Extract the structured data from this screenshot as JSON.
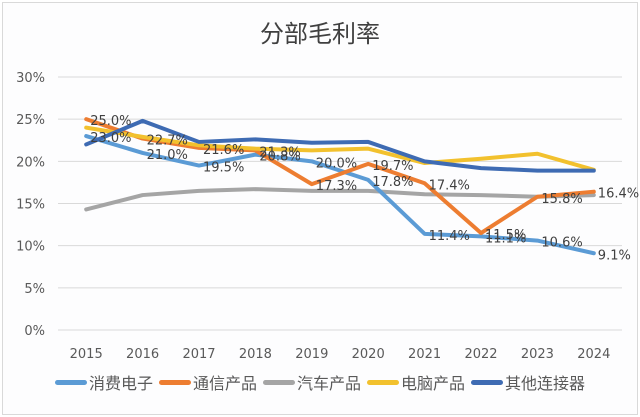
{
  "chart_data": {
    "type": "line",
    "title": "分部毛利率",
    "xlabel": "",
    "ylabel": "",
    "categories": [
      "2015",
      "2016",
      "2017",
      "2018",
      "2019",
      "2020",
      "2021",
      "2022",
      "2023",
      "2024"
    ],
    "ylim": [
      0,
      30
    ],
    "yticks": [
      "0%",
      "5%",
      "10%",
      "15%",
      "20%",
      "25%",
      "30%"
    ],
    "ytick_values": [
      0,
      5,
      10,
      15,
      20,
      25,
      30
    ],
    "grid": true,
    "legend_position": "bottom",
    "series": [
      {
        "name": "消费电子",
        "color": "#5b9bd5",
        "values": [
          23.0,
          21.0,
          19.5,
          20.8,
          20.0,
          17.8,
          11.4,
          11.1,
          10.6,
          9.1
        ],
        "labels": [
          "23.0%",
          "21.0%",
          "19.5%",
          "20.8%",
          "20.0%",
          "17.8%",
          "11.4%",
          "11.1%",
          "10.6%",
          "9.1%"
        ]
      },
      {
        "name": "通信产品",
        "color": "#ed7d31",
        "values": [
          25.0,
          22.7,
          21.6,
          21.3,
          17.3,
          19.7,
          17.4,
          11.5,
          15.8,
          16.4
        ],
        "labels": [
          "25.0%",
          "22.7%",
          "21.6%",
          "21.3%",
          "17.3%",
          "19.7%",
          "17.4%",
          "11.5%",
          "15.8%",
          "16.4%"
        ]
      },
      {
        "name": "汽车产品",
        "color": "#a5a5a5",
        "values": [
          14.3,
          16.0,
          16.5,
          16.7,
          16.5,
          16.5,
          16.1,
          16.0,
          15.8,
          16.0
        ],
        "labels": []
      },
      {
        "name": "电脑产品",
        "color": "#f2c12e",
        "values": [
          24.0,
          22.9,
          21.9,
          21.5,
          21.3,
          21.5,
          19.8,
          20.3,
          20.9,
          19.0
        ],
        "labels": []
      },
      {
        "name": "其他连接器",
        "color": "#3e6bb3",
        "values": [
          22.0,
          24.8,
          22.3,
          22.6,
          22.2,
          22.3,
          20.0,
          19.2,
          18.9,
          18.9
        ],
        "labels": []
      }
    ]
  }
}
